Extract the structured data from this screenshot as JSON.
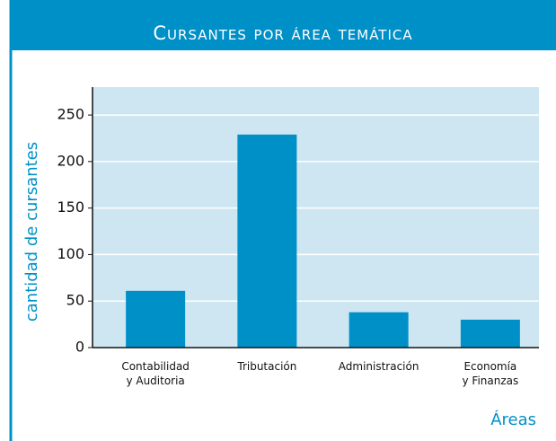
{
  "chart_data": {
    "type": "bar",
    "title": "Cursantes por área temática",
    "categories": [
      "Contabilidad\ny Auditoria",
      "Tributación",
      "Administración",
      "Economía\ny Finanzas"
    ],
    "values": [
      61,
      229,
      38,
      30
    ],
    "color": "#0090c8",
    "ylim": [
      0,
      280
    ],
    "yticks": [
      0,
      50,
      100,
      150,
      200,
      250
    ],
    "grid": true,
    "ylabel": "cantidad de cursantes",
    "xlabel": "Áreas"
  }
}
